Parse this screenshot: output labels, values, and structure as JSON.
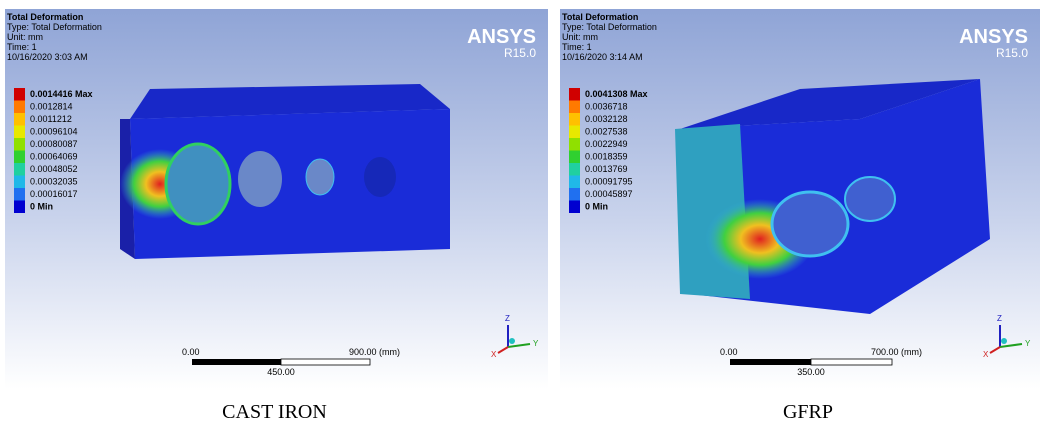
{
  "panels": [
    {
      "header": {
        "title": "Total Deformation",
        "lines": [
          "Type: Total Deformation",
          "Unit: mm",
          "Time: 1",
          "10/16/2020 3:03 AM"
        ]
      },
      "logo": {
        "brand": "ANSYS",
        "version": "R15.0"
      },
      "legend": [
        "0.0014416 Max",
        "0.0012814",
        "0.0011212",
        "0.00096104",
        "0.00080087",
        "0.00064069",
        "0.00048052",
        "0.00032035",
        "0.00016017",
        "0 Min"
      ],
      "scale": {
        "start": "0.00",
        "end": "900.00 (mm)",
        "mid": "450.00"
      },
      "triad": {
        "z": "Z",
        "y": "Y",
        "x": "X"
      },
      "caption": "CAST IRON"
    },
    {
      "header": {
        "title": "Total Deformation",
        "lines": [
          "Type: Total Deformation",
          "Unit: mm",
          "Time: 1",
          "10/16/2020 3:14 AM"
        ]
      },
      "logo": {
        "brand": "ANSYS",
        "version": "R15.0"
      },
      "legend": [
        "0.0041308 Max",
        "0.0036718",
        "0.0032128",
        "0.0027538",
        "0.0022949",
        "0.0018359",
        "0.0013769",
        "0.00091795",
        "0.00045897",
        "0 Min"
      ],
      "scale": {
        "start": "0.00",
        "end": "700.00 (mm)",
        "mid": "350.00"
      },
      "triad": {
        "z": "Z",
        "y": "Y",
        "x": "X"
      },
      "caption": "GFRP"
    }
  ]
}
